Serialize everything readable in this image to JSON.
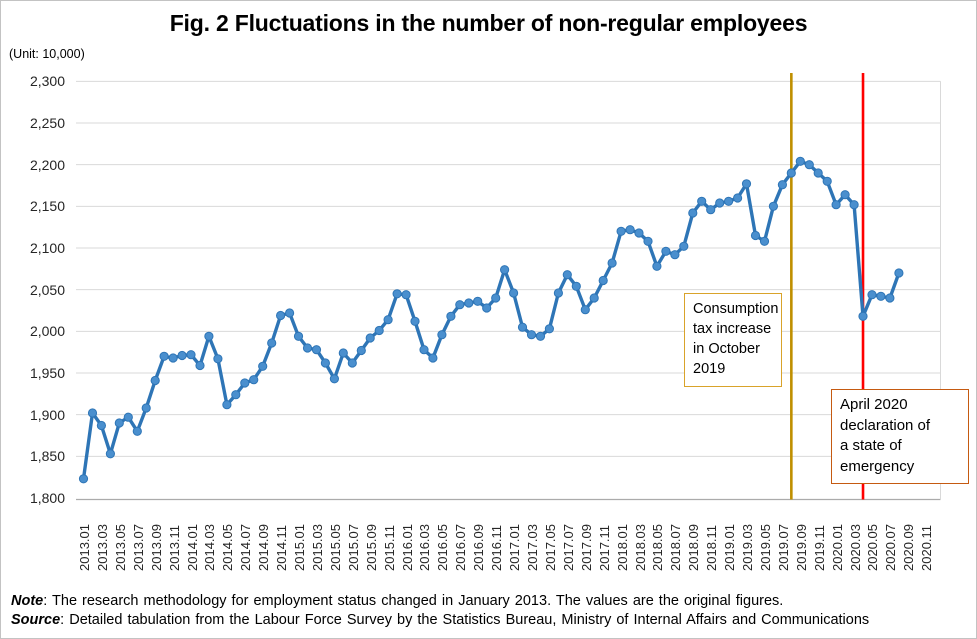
{
  "title": "Fig. 2 Fluctuations in the number of non-regular employees",
  "unit_label": "(Unit: 10,000)",
  "chart_data": {
    "type": "line",
    "series_name": "Number of non-regular employees (original figures)",
    "x": [
      "2013.01",
      "2013.02",
      "2013.03",
      "2013.04",
      "2013.05",
      "2013.06",
      "2013.07",
      "2013.08",
      "2013.09",
      "2013.10",
      "2013.11",
      "2013.12",
      "2014.01",
      "2014.02",
      "2014.03",
      "2014.04",
      "2014.05",
      "2014.06",
      "2014.07",
      "2014.08",
      "2014.09",
      "2014.10",
      "2014.11",
      "2014.12",
      "2015.01",
      "2015.02",
      "2015.03",
      "2015.04",
      "2015.05",
      "2015.06",
      "2015.07",
      "2015.08",
      "2015.09",
      "2015.10",
      "2015.11",
      "2015.12",
      "2016.01",
      "2016.02",
      "2016.03",
      "2016.04",
      "2016.05",
      "2016.06",
      "2016.07",
      "2016.08",
      "2016.09",
      "2016.10",
      "2016.11",
      "2016.12",
      "2017.01",
      "2017.02",
      "2017.03",
      "2017.04",
      "2017.05",
      "2017.06",
      "2017.07",
      "2017.08",
      "2017.09",
      "2017.10",
      "2017.11",
      "2017.12",
      "2018.01",
      "2018.02",
      "2018.03",
      "2018.04",
      "2018.05",
      "2018.06",
      "2018.07",
      "2018.08",
      "2018.09",
      "2018.10",
      "2018.11",
      "2018.12",
      "2019.01",
      "2019.02",
      "2019.03",
      "2019.04",
      "2019.05",
      "2019.06",
      "2019.07",
      "2019.08",
      "2019.09",
      "2019.10",
      "2019.11",
      "2019.12",
      "2020.01",
      "2020.02",
      "2020.03",
      "2020.04",
      "2020.05",
      "2020.06",
      "2020.07",
      "2020.08"
    ],
    "values": [
      1823,
      1902,
      1887,
      1853,
      1890,
      1897,
      1880,
      1908,
      1941,
      1970,
      1968,
      1971,
      1972,
      1959,
      1994,
      1967,
      1912,
      1924,
      1938,
      1942,
      1958,
      1986,
      2019,
      2022,
      1994,
      1980,
      1978,
      1962,
      1943,
      1974,
      1962,
      1977,
      1992,
      2001,
      2014,
      2045,
      2044,
      2012,
      1978,
      1968,
      1996,
      2018,
      2032,
      2034,
      2036,
      2028,
      2040,
      2074,
      2046,
      2005,
      1996,
      1994,
      2003,
      2046,
      2068,
      2054,
      2026,
      2040,
      2061,
      2082,
      2120,
      2122,
      2118,
      2108,
      2078,
      2096,
      2092,
      2102,
      2142,
      2156,
      2146,
      2154,
      2156,
      2160,
      2177,
      2115,
      2108,
      2150,
      2176,
      2190,
      2204,
      2200,
      2190,
      2180,
      2152,
      2164,
      2152,
      2018,
      2044,
      2042,
      2040,
      2070
    ],
    "ylim": [
      1800,
      2300
    ],
    "y_tick_step": 50,
    "y_tick_labels": [
      "1,800",
      "1,850",
      "1,900",
      "1,950",
      "2,000",
      "2,050",
      "2,100",
      "2,150",
      "2,200",
      "2,250",
      "2,300"
    ],
    "x_tick_labels": [
      "2013.01",
      "2013.03",
      "2013.05",
      "2013.07",
      "2013.09",
      "2013.11",
      "2014.01",
      "2014.03",
      "2014.05",
      "2014.07",
      "2014.09",
      "2014.11",
      "2015.01",
      "2015.03",
      "2015.05",
      "2015.07",
      "2015.09",
      "2015.11",
      "2016.01",
      "2016.03",
      "2016.05",
      "2016.07",
      "2016.09",
      "2016.11",
      "2017.01",
      "2017.03",
      "2017.05",
      "2017.07",
      "2017.09",
      "2017.11",
      "2018.01",
      "2018.03",
      "2018.05",
      "2018.07",
      "2018.09",
      "2018.11",
      "2019.01",
      "2019.03",
      "2019.05",
      "2019.07",
      "2019.09",
      "2019.11",
      "2020.01",
      "2020.03",
      "2020.05",
      "2020.07",
      "2020.09",
      "2020.11"
    ],
    "grid": "horizontal",
    "legend": "none",
    "line_color": "#2E75B6",
    "marker_color": "#4A8FCE",
    "event_lines": [
      {
        "x_month": "2019.08",
        "color": "#BF8F00",
        "label": "Consumption tax increase in October 2019"
      },
      {
        "x_month": "2020.04",
        "color": "#FF0000",
        "label": "April 2020 declaration of a state of emergency"
      }
    ]
  },
  "annotations": {
    "consumption_tax": {
      "lines": [
        "Consumption",
        "tax increase",
        "in October",
        "2019"
      ]
    },
    "emergency": {
      "lines": [
        "April 2020",
        "declaration of",
        "a state of",
        "emergency"
      ]
    }
  },
  "footer": {
    "note_label": "Note",
    "note_text": ": The research methodology for employment status changed in January 2013. The values are the original figures.",
    "source_label": "Source",
    "source_text": ": Detailed tabulation from the Labour Force Survey by the Statistics Bureau, Ministry of Internal Affairs and Communications"
  },
  "colors": {
    "gridline": "#D9D9D9",
    "axis": "#ABABAB",
    "tax_box_border": "#D9A32A",
    "emergency_box_border": "#C55A11"
  }
}
